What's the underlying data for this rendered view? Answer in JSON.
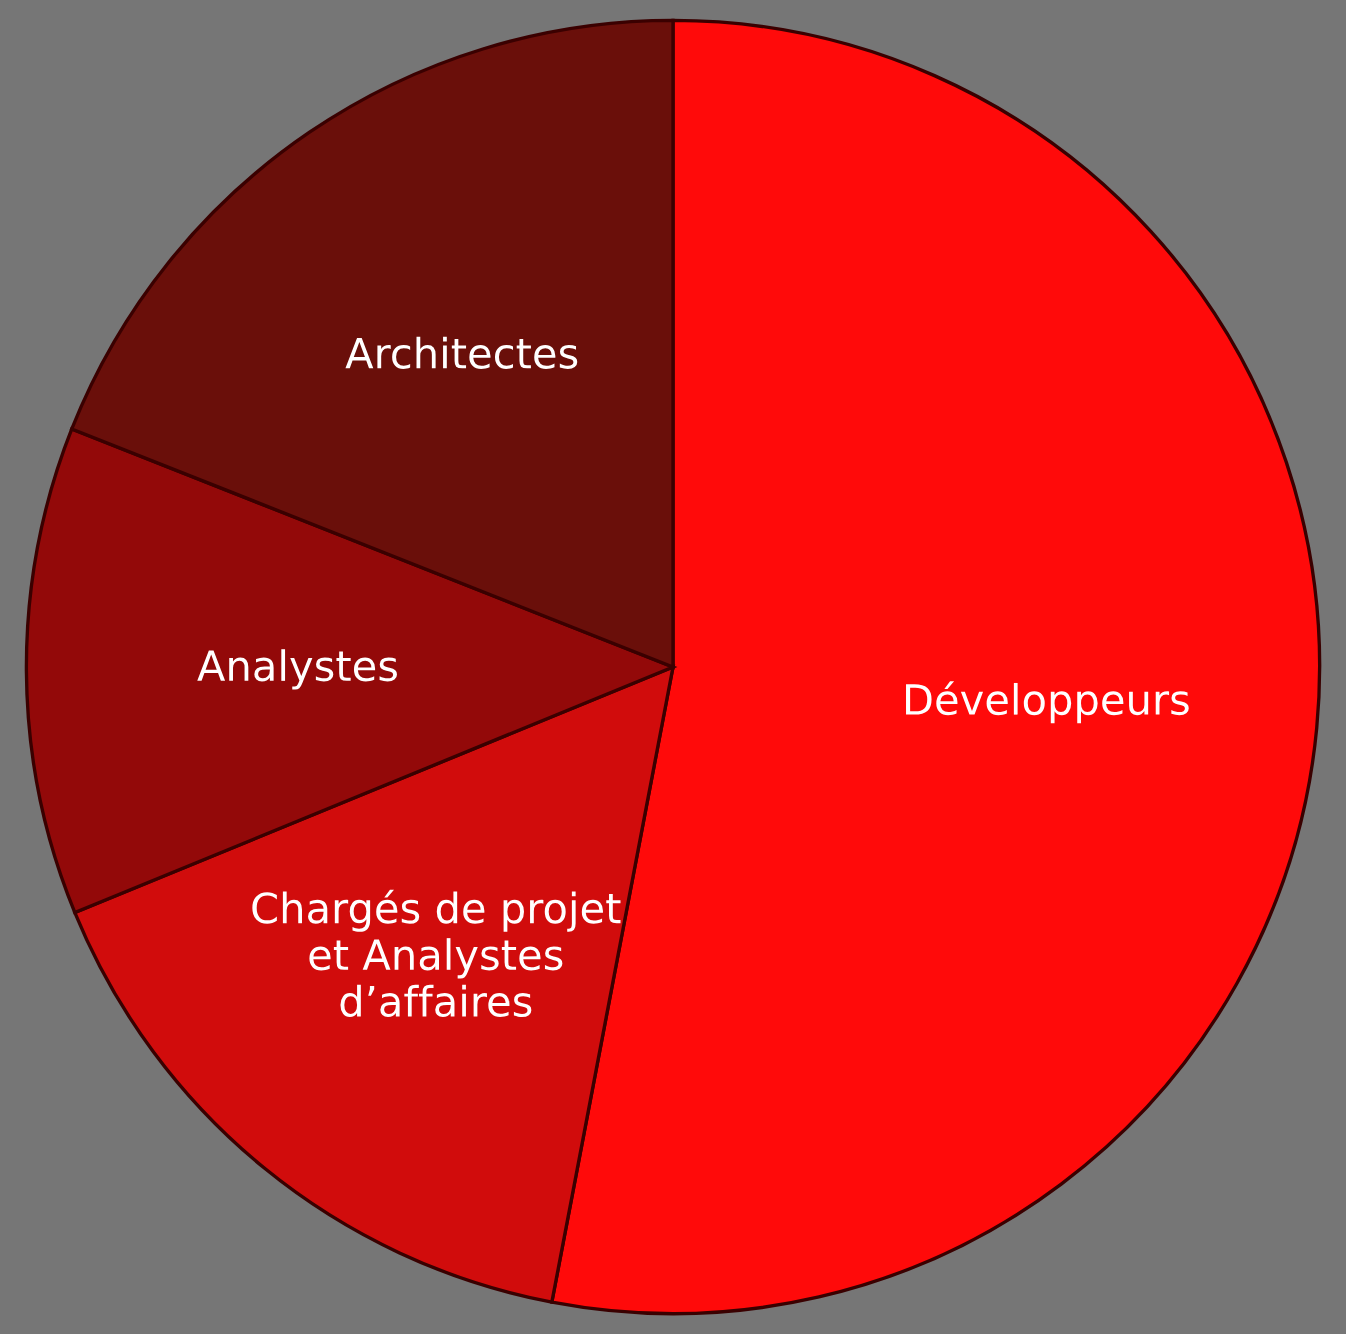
{
  "chart_data": {
    "type": "pie",
    "categories": [
      "Développeurs",
      "Chargés de projet\net Analystes\nd’affaires",
      "Analystes",
      "Architectes"
    ],
    "values": [
      53,
      15.8,
      12.2,
      19
    ],
    "colors": [
      "#ff0a0a",
      "#d10c0c",
      "#930909",
      "#6a0f0a"
    ],
    "legend": false
  }
}
